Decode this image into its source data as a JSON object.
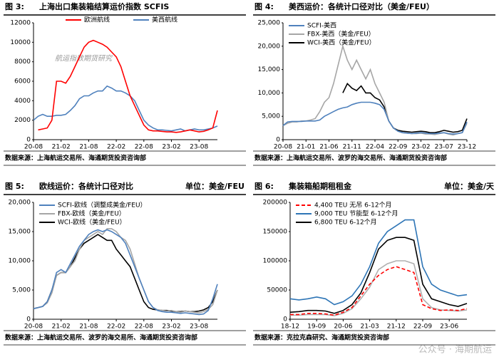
{
  "chart_data": [
    {
      "type": "line",
      "figure_label": "图 3:",
      "title": "上海出口集装箱结算运价指数 SCFIS",
      "source": "数据来源：上海航运交易所、海通期货投资咨询部",
      "annotation": "航运指数期货研究",
      "legend": "top",
      "categories": [
        "20-08",
        null,
        null,
        null,
        null,
        null,
        "21-02",
        null,
        null,
        null,
        null,
        null,
        "21-08",
        null,
        null,
        null,
        null,
        null,
        "22-02",
        null,
        null,
        null,
        null,
        null,
        "22-08",
        null,
        null,
        null,
        null,
        null,
        "23-02",
        null,
        null,
        null,
        null,
        null,
        "23-08",
        null,
        null,
        null,
        null
      ],
      "ylim": [
        0,
        12000
      ],
      "yticks": [
        0,
        2000,
        4000,
        6000,
        8000,
        10000,
        12000
      ],
      "series": [
        {
          "name": "欧洲航线",
          "color": "#ff0000",
          "values": [
            null,
            1000,
            1100,
            1200,
            2000,
            6000,
            6000,
            5800,
            6500,
            7500,
            8500,
            9500,
            10000,
            10200,
            10000,
            9800,
            9500,
            9000,
            8500,
            7500,
            6000,
            4500,
            3500,
            2500,
            1500,
            1000,
            900,
            900,
            850,
            800,
            800,
            750,
            800,
            900,
            1000,
            900,
            800,
            850,
            1000,
            1200,
            3000
          ]
        },
        {
          "name": "美西航线",
          "color": "#4f81bd",
          "values": [
            2000,
            2400,
            2600,
            2400,
            2400,
            2500,
            2500,
            2600,
            3000,
            3500,
            4200,
            4500,
            4500,
            4800,
            5000,
            5000,
            5500,
            5300,
            5000,
            5000,
            4800,
            4500,
            4000,
            3000,
            2000,
            1500,
            1200,
            1000,
            1000,
            950,
            900,
            1000,
            1100,
            900,
            1000,
            1100,
            1000,
            1000,
            1100,
            1200,
            1400
          ]
        }
      ]
    },
    {
      "type": "line",
      "figure_label": "图 4:",
      "title": "美西运价：各统计口径对比（美金/FEU）",
      "source": "数据来源：上海航运交易所、波罗的海交易所、海通期货投资咨询部",
      "legend": "upper left",
      "categories": [
        "20-08",
        null,
        null,
        null,
        null,
        "21-01",
        null,
        null,
        null,
        null,
        "21-06",
        null,
        null,
        null,
        null,
        "21-11",
        null,
        null,
        null,
        null,
        "22-04",
        null,
        null,
        null,
        null,
        "22-09",
        null,
        null,
        null,
        null,
        "23-02",
        null,
        null,
        null,
        null,
        "23-07",
        null,
        null,
        null,
        null,
        "23-12"
      ],
      "ylim": [
        0,
        25000
      ],
      "yticks": [
        0,
        {
          "value": 5000,
          "label": "5,000"
        },
        {
          "value": 10000,
          "label": "10,000"
        },
        {
          "value": 15000,
          "label": "15,000"
        },
        {
          "value": 20000,
          "label": "20,000"
        },
        {
          "value": 25000,
          "label": "25,000"
        }
      ],
      "series": [
        {
          "name": "SCFI-美西",
          "color": "#4f81bd",
          "values": [
            3000,
            3800,
            3900,
            3900,
            3900,
            4000,
            4000,
            4000,
            4200,
            5000,
            5500,
            6000,
            6500,
            6800,
            7000,
            7500,
            7800,
            8000,
            8000,
            8000,
            7800,
            7500,
            6500,
            4000,
            2500,
            1800,
            1500,
            1400,
            1300,
            1400,
            1500,
            1400,
            1300,
            1300,
            1400,
            1500,
            1300,
            1200,
            1300,
            1500,
            3800
          ]
        },
        {
          "name": "FBX-美西（美金/FEU）",
          "color": "#a6a6a6",
          "values": [
            3000,
            3500,
            3800,
            3800,
            4000,
            4000,
            4200,
            4500,
            6000,
            8000,
            9000,
            12000,
            16000,
            20000,
            17000,
            15000,
            17000,
            15000,
            13000,
            15000,
            12000,
            10000,
            8000,
            4000,
            2500,
            1800,
            1500,
            1400,
            1300,
            1300,
            1400,
            1200,
            1200,
            1100,
            1300,
            1500,
            1200,
            1000,
            1300,
            1500,
            3500
          ]
        },
        {
          "name": "WCI-美西（美金/FEU）",
          "color": "#000000",
          "values": [
            null,
            null,
            null,
            null,
            null,
            null,
            null,
            null,
            null,
            null,
            null,
            null,
            null,
            10000,
            12000,
            11000,
            10500,
            11500,
            10000,
            10000,
            9000,
            8500,
            7000,
            4000,
            2500,
            2000,
            1800,
            1700,
            1600,
            1700,
            1800,
            1700,
            1500,
            1500,
            1700,
            2000,
            1800,
            1600,
            1700,
            2000,
            4500
          ]
        }
      ]
    },
    {
      "type": "line",
      "figure_label": "图 5:",
      "title": "欧线运价：各统计口径对比",
      "unit": "单位：美金/FEU",
      "source": "数据来源：上海航运交易所、波罗的海交易所、海通期货投资咨询部",
      "legend": "upper left",
      "categories": [
        "20-08",
        null,
        null,
        null,
        null,
        null,
        "21-02",
        null,
        null,
        null,
        null,
        null,
        "21-08",
        null,
        null,
        null,
        null,
        null,
        "22-02",
        null,
        null,
        null,
        null,
        null,
        "22-08",
        null,
        null,
        null,
        null,
        null,
        "23-02",
        null,
        null,
        null,
        null,
        null,
        "23-08",
        null,
        null,
        null,
        null
      ],
      "ylim": [
        0,
        20000
      ],
      "yticks": [
        0,
        {
          "value": 5000,
          "label": "5,000"
        },
        {
          "value": 10000,
          "label": "10,000"
        },
        {
          "value": 15000,
          "label": "15,000"
        },
        {
          "value": 20000,
          "label": "20,000"
        }
      ],
      "series": [
        {
          "name": "SCFI-欧线（调整成美金/FEU）",
          "color": "#4f81bd",
          "values": [
            1800,
            2000,
            2200,
            3000,
            5000,
            8000,
            8500,
            8000,
            9500,
            11000,
            12500,
            13500,
            14500,
            15000,
            15300,
            15000,
            15300,
            15000,
            14500,
            14000,
            13000,
            11000,
            9000,
            7000,
            5000,
            3000,
            2000,
            1500,
            1300,
            1200,
            1200,
            1100,
            1000,
            1100,
            1000,
            900,
            800,
            900,
            1500,
            3500,
            6000
          ]
        },
        {
          "name": "FBX-欧线（美金/FEU）",
          "color": "#a6a6a6",
          "values": [
            1800,
            2000,
            2200,
            2800,
            4500,
            7500,
            8000,
            8000,
            9000,
            10000,
            12000,
            13500,
            14000,
            14500,
            15000,
            14500,
            15500,
            15500,
            15000,
            14000,
            13500,
            12000,
            9500,
            7000,
            5000,
            3000,
            2000,
            1600,
            1500,
            1400,
            1500,
            1300,
            1200,
            1400,
            1300,
            1200,
            1100,
            1300,
            1700,
            2500,
            5000
          ]
        },
        {
          "name": "WCI-欧线（美金/FEU）",
          "color": "#000000",
          "values": [
            1800,
            2000,
            2200,
            3000,
            5000,
            7500,
            8000,
            8000,
            9000,
            10500,
            12000,
            13000,
            13500,
            14000,
            14500,
            14000,
            13500,
            13500,
            12000,
            11000,
            10000,
            9000,
            7000,
            5000,
            3000,
            2000,
            1700,
            1600,
            1500,
            1500,
            1400,
            1300,
            1300,
            1400,
            1300,
            1300,
            1400,
            1600,
            2000,
            3000,
            5000
          ]
        }
      ]
    },
    {
      "type": "line",
      "figure_label": "图 6:",
      "title": "集装箱船期租租金",
      "unit": "单位：美金/天",
      "source": "数据来源：克拉克森研究、海通期货投资咨询部",
      "legend": "upper left",
      "categories": [
        "18-12",
        null,
        null,
        "19-09",
        null,
        null,
        "20-06",
        null,
        null,
        "21-03",
        null,
        null,
        "21-12",
        null,
        null,
        "22-09",
        null,
        null,
        "23-06",
        null,
        null
      ],
      "ylim": [
        0,
        200000
      ],
      "yticks": [
        0,
        50000,
        100000,
        150000,
        200000
      ],
      "series": [
        {
          "name": "4,400 TEU 无吊 6-12个月",
          "color": "#ff0000",
          "line_style": "dashed",
          "values": [
            8000,
            8000,
            10000,
            10000,
            9000,
            7000,
            12000,
            20000,
            40000,
            60000,
            75000,
            85000,
            90000,
            85000,
            80000,
            25000,
            18000,
            15000,
            16000,
            15000,
            18000
          ]
        },
        {
          "name": "9,000 TEU 节能型 6-12个月",
          "color": "#2e75b6",
          "values": [
            35000,
            33000,
            35000,
            38000,
            35000,
            25000,
            30000,
            40000,
            60000,
            90000,
            130000,
            150000,
            160000,
            170000,
            170000,
            90000,
            60000,
            50000,
            45000,
            40000,
            42000
          ]
        },
        {
          "name": "6,800 TEU 6-12个月",
          "color": "#000000",
          "values": [
            12000,
            13000,
            15000,
            15000,
            14000,
            10000,
            15000,
            25000,
            45000,
            80000,
            120000,
            135000,
            140000,
            140000,
            135000,
            60000,
            35000,
            30000,
            25000,
            22000,
            27000
          ]
        },
        {
          "color": "#b0b0b0",
          "values": [
            7000,
            7000,
            8000,
            8000,
            8000,
            6000,
            10000,
            18000,
            35000,
            55000,
            85000,
            95000,
            100000,
            100000,
            95000,
            35000,
            20000,
            16000,
            15000,
            14000,
            16000
          ]
        }
      ]
    }
  ],
  "watermark": "公众号 · 海期航运"
}
